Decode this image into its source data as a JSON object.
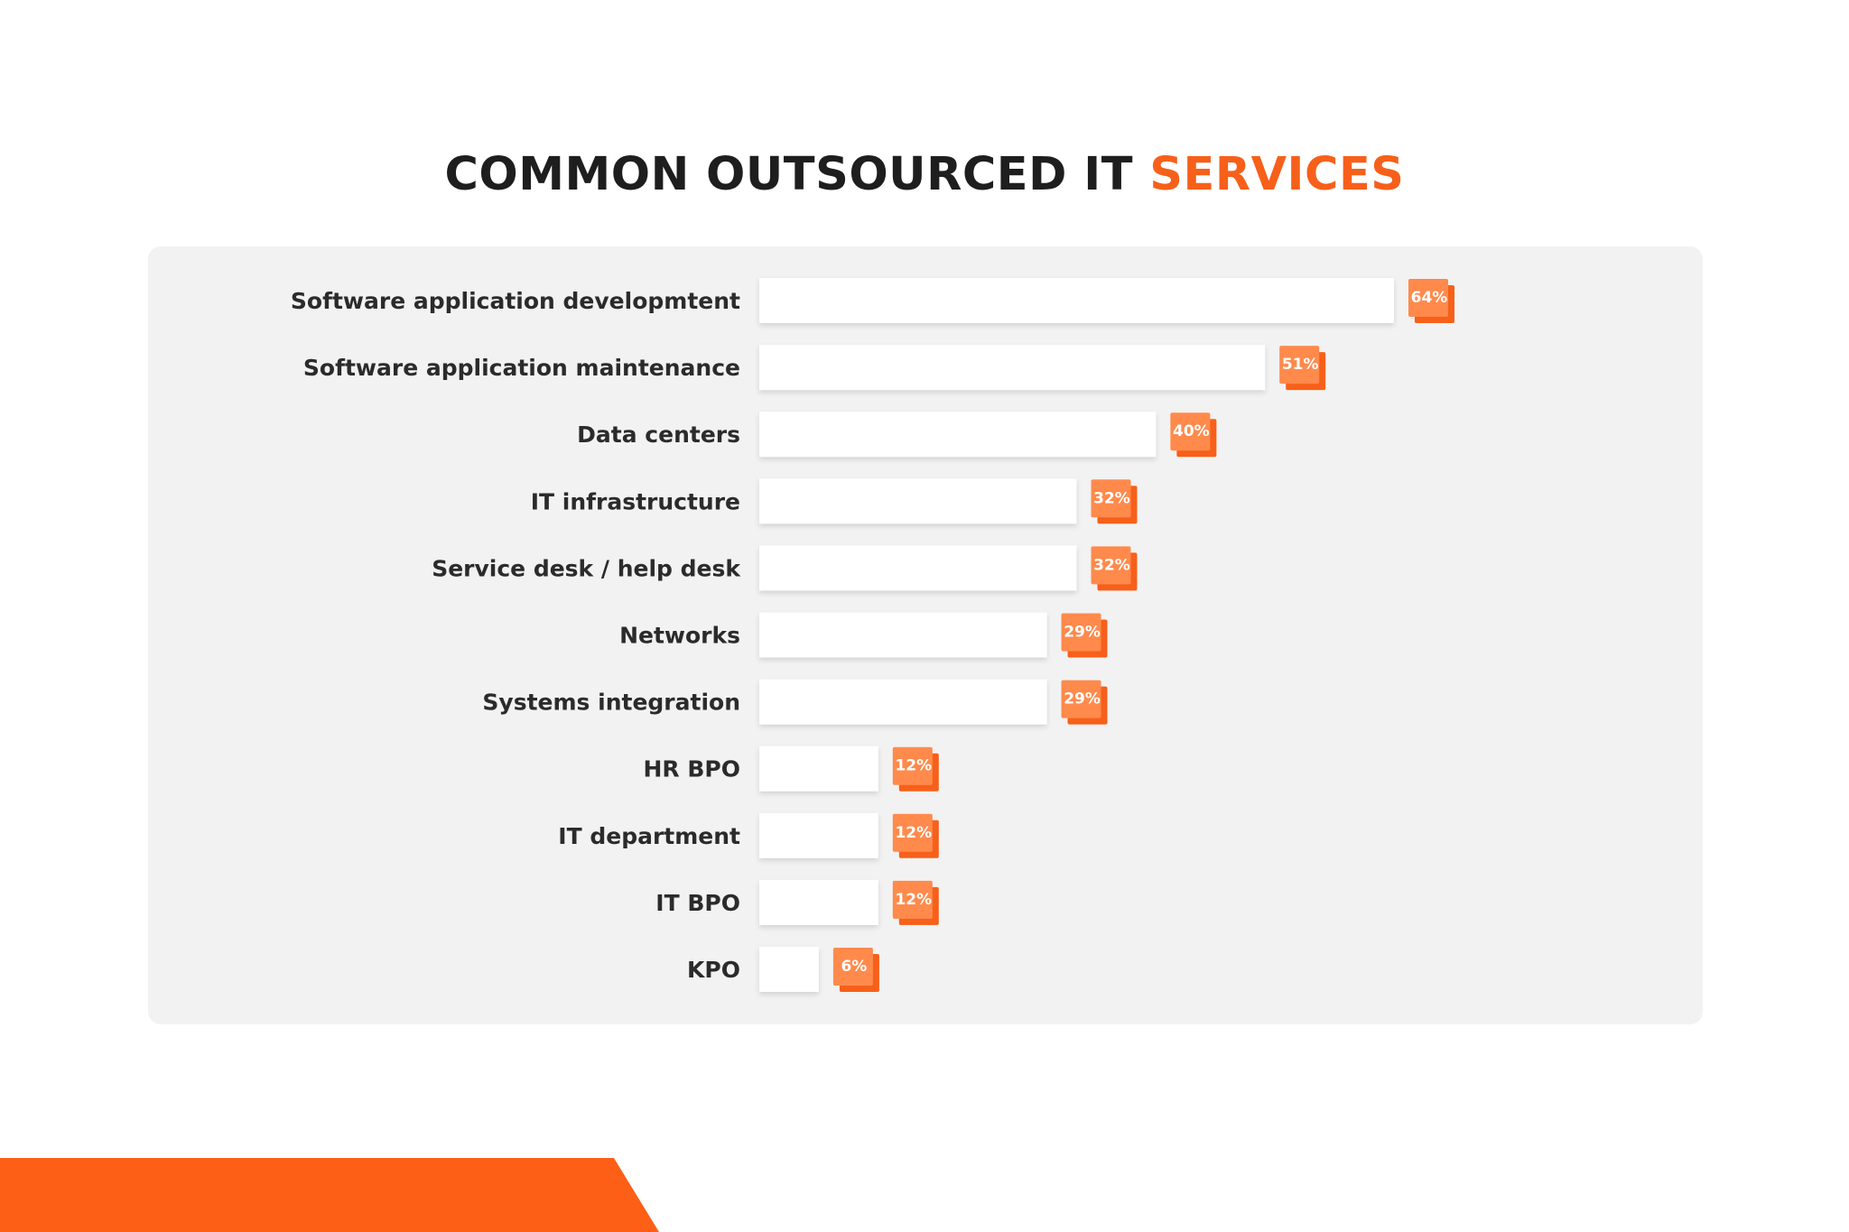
{
  "title": {
    "main": "COMMON OUTSOURCED IT",
    "accent": "SERVICES"
  },
  "colors": {
    "accent": "#f7601a",
    "accent_light": "#ff8a4c",
    "bar": "#ffffff",
    "panel": "#f2f2f2",
    "text": "#2b2b2b"
  },
  "chart_data": {
    "type": "bar",
    "orientation": "horizontal",
    "title": "COMMON OUTSOURCED IT SERVICES",
    "unit": "%",
    "xlim": [
      0,
      64
    ],
    "grid": false,
    "categories": [
      "Software application developmtent",
      "Software application maintenance",
      "Data centers",
      "IT infrastructure",
      "Service desk / help desk",
      "Networks",
      "Systems integration",
      "HR BPO",
      "IT department",
      "IT BPO",
      "KPO"
    ],
    "values": [
      64,
      51,
      40,
      32,
      32,
      29,
      29,
      12,
      12,
      12,
      6
    ],
    "value_labels": [
      "64%",
      "51%",
      "40%",
      "32%",
      "32%",
      "29%",
      "29%",
      "12%",
      "12%",
      "12%",
      "6%"
    ]
  }
}
